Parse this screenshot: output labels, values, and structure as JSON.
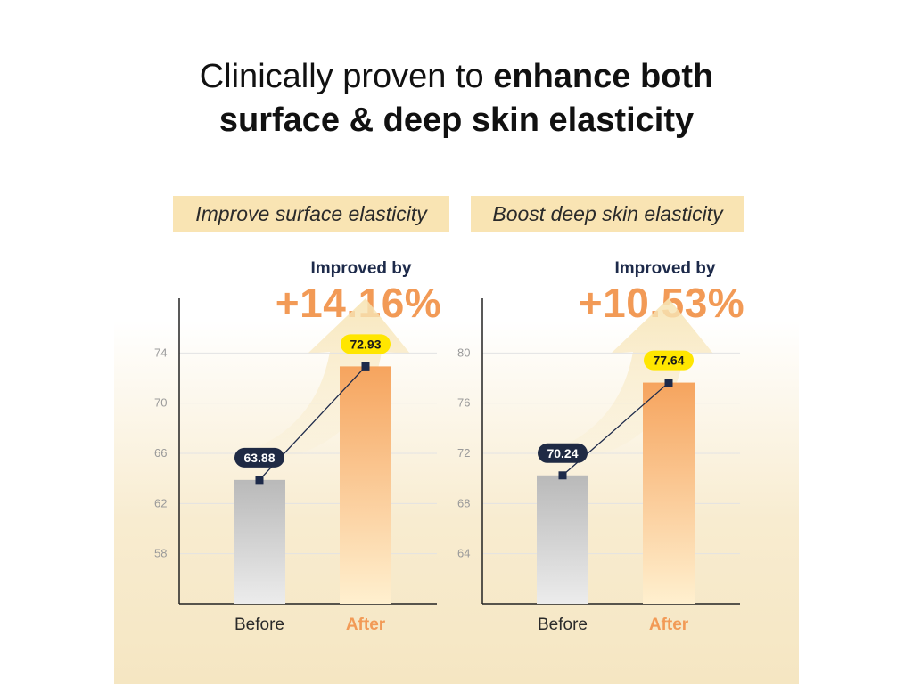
{
  "headline": {
    "line1_regular": "Clinically proven to ",
    "line1_bold": "enhance both",
    "line2_bold": "surface & deep skin elasticity"
  },
  "chart_data": [
    {
      "type": "bar",
      "title": "Improve surface elasticity",
      "improved_label": "Improved by",
      "improved_value": "+14.16%",
      "categories": [
        "Before",
        "After"
      ],
      "values": [
        63.88,
        72.93
      ],
      "value_labels": [
        "63.88",
        "72.93"
      ],
      "ylim": [
        54,
        78
      ],
      "yticks": [
        58,
        62,
        66,
        70,
        74
      ],
      "ytick_labels": [
        "58",
        "62",
        "66",
        "70",
        "74"
      ],
      "grid": true,
      "xlabel": "",
      "ylabel": ""
    },
    {
      "type": "bar",
      "title": "Boost deep skin elasticity",
      "improved_label": "Improved by",
      "improved_value": "+10.53%",
      "categories": [
        "Before",
        "After"
      ],
      "values": [
        70.24,
        77.64
      ],
      "value_labels": [
        "70.24",
        "77.64"
      ],
      "ylim": [
        60,
        84
      ],
      "yticks": [
        64,
        68,
        72,
        76,
        80
      ],
      "ytick_labels": [
        "64",
        "68",
        "72",
        "76",
        "80"
      ],
      "grid": true,
      "xlabel": "",
      "ylabel": ""
    }
  ],
  "colors": {
    "before_bar_top": "#b9b9b9",
    "before_bar_bottom": "#ececec",
    "after_bar_top": "#f6a45e",
    "after_bar_bottom": "#fff0cf",
    "before_badge": "#1f2a44",
    "after_badge": "#ffe600",
    "accent": "#f29a56",
    "dark": "#1d2a4a"
  }
}
